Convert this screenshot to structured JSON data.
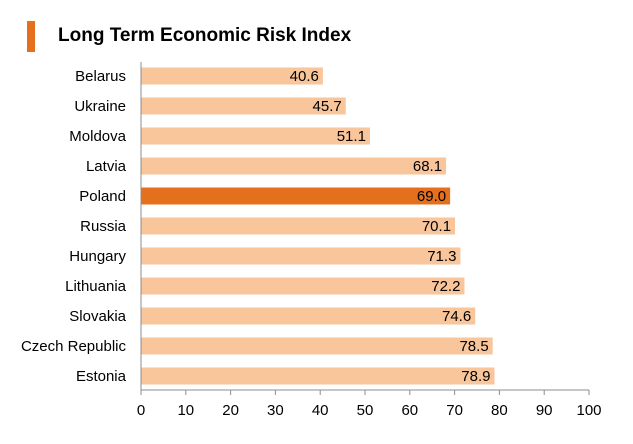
{
  "chart_data": {
    "type": "bar",
    "orientation": "horizontal",
    "title": "Long Term Economic Risk Index",
    "categories": [
      "Belarus",
      "Ukraine",
      "Moldova",
      "Latvia",
      "Poland",
      "Russia",
      "Hungary",
      "Lithuania",
      "Slovakia",
      "Czech Republic",
      "Estonia"
    ],
    "values": [
      40.6,
      45.7,
      51.1,
      68.1,
      69.0,
      70.1,
      71.3,
      72.2,
      74.6,
      78.5,
      78.9
    ],
    "value_labels": [
      "40.6",
      "45.7",
      "51.1",
      "68.1",
      "69.0",
      "70.1",
      "71.3",
      "72.2",
      "74.6",
      "78.5",
      "78.9"
    ],
    "highlight": "Poland",
    "xlim": [
      0,
      100
    ],
    "xticks": [
      "0",
      "10",
      "20",
      "30",
      "40",
      "50",
      "60",
      "70",
      "80",
      "90",
      "100"
    ],
    "xlabel": "",
    "ylabel": "",
    "grid": false
  },
  "colors": {
    "bar": "#f9c59a",
    "highlight": "#e4701e",
    "axis": "#8c8c8c",
    "accent": "#e4701e"
  }
}
